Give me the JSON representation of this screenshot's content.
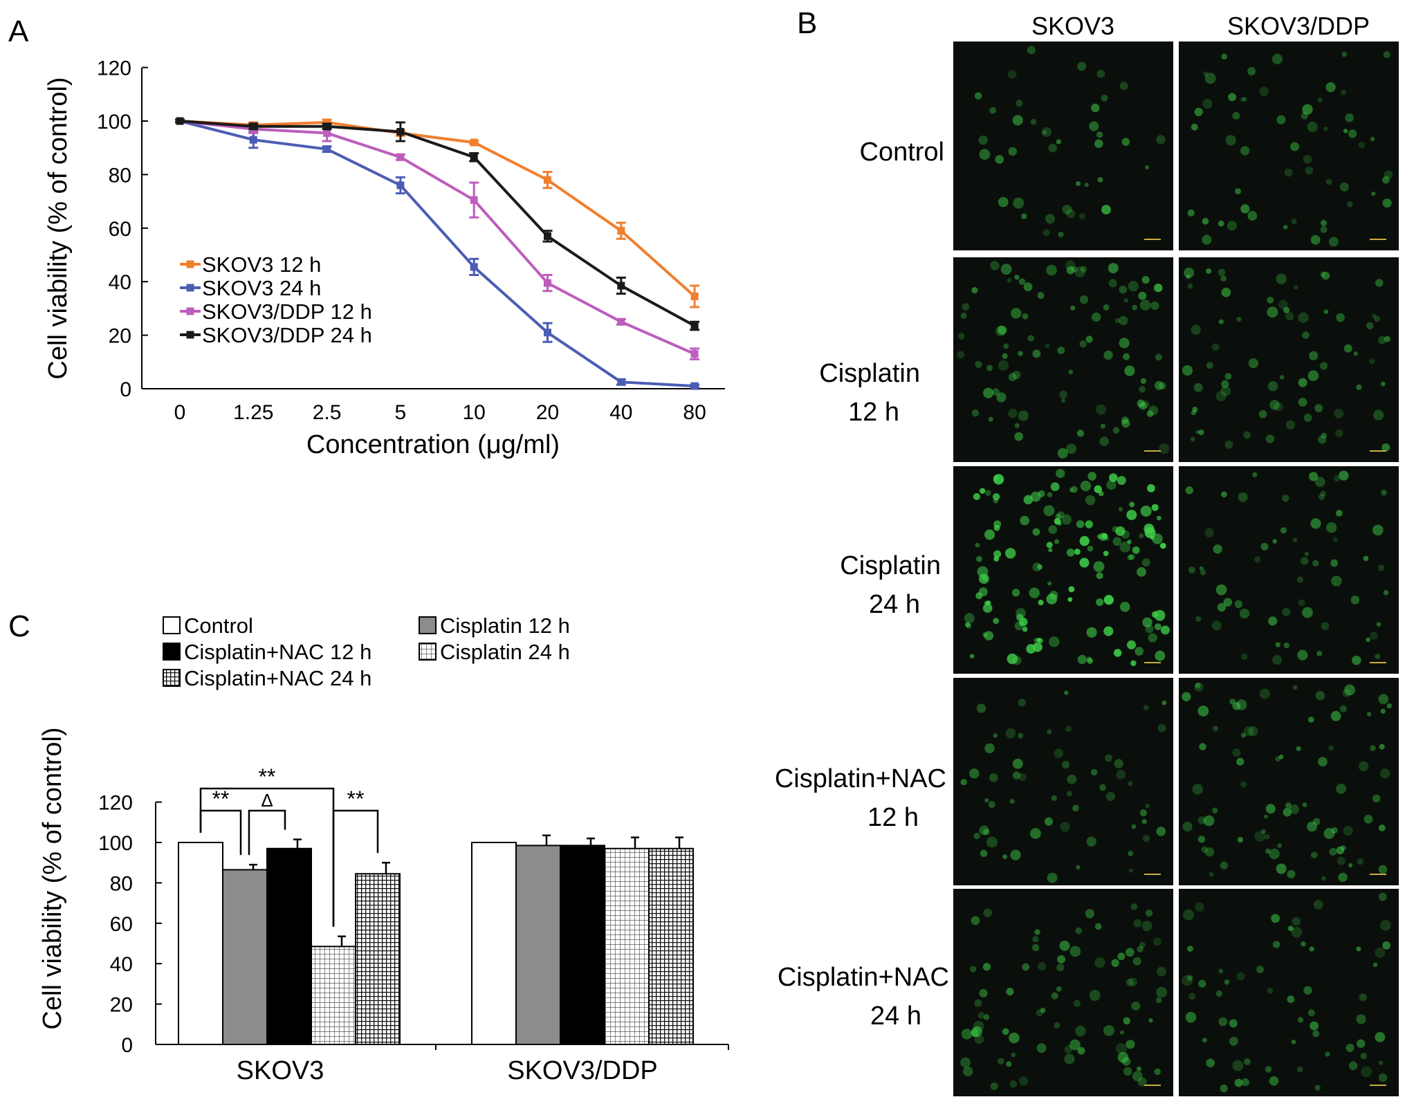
{
  "panel_letters": {
    "a": "A",
    "b": "B",
    "c": "C"
  },
  "colors": {
    "skov3_12h": "#f07f2e",
    "skov3_24h": "#4b5db3",
    "skov3ddp_12h": "#bd5dbd",
    "skov3ddp_24h": "#1a1a1a",
    "bar_control": "#ffffff",
    "bar_cisplatin_12h": "#8c8c8c",
    "bar_nac_12h": "#000000",
    "micro_bg": "#0b0f0b",
    "cell_green": "#3fd14a"
  },
  "chart_data": [
    {
      "panel": "A",
      "type": "line",
      "xlabel": "Concentration (μg/ml)",
      "ylabel": "Cell viability (% of control)",
      "x_ticks": [
        "0",
        "1.25",
        "2.5",
        "5",
        "10",
        "20",
        "40",
        "80"
      ],
      "y_ticks": [
        "0",
        "20",
        "40",
        "60",
        "80",
        "100",
        "120"
      ],
      "ylim": [
        0,
        120
      ],
      "legend_position": "left",
      "series": [
        {
          "name": "SKOV3 12 h",
          "color": "#f07f2e",
          "values": [
            100,
            98.5,
            99.5,
            95.5,
            92,
            78,
            59,
            34.5
          ],
          "errors": [
            0.5,
            1,
            1,
            1,
            0.5,
            3,
            3,
            4
          ]
        },
        {
          "name": "SKOV3 24 h",
          "color": "#4b5db3",
          "values": [
            100,
            93,
            89.5,
            76,
            45.5,
            21,
            2.5,
            1
          ],
          "errors": [
            0.5,
            3,
            1,
            3,
            3,
            3.5,
            1,
            0.5
          ]
        },
        {
          "name": "SKOV3/DDP 12 h",
          "color": "#bd5dbd",
          "values": [
            100,
            97,
            95.5,
            86.5,
            70.5,
            39.5,
            25,
            13
          ],
          "errors": [
            0.5,
            1.5,
            3,
            1,
            6.5,
            3,
            1,
            2
          ]
        },
        {
          "name": "SKOV3/DDP 24 h",
          "color": "#1a1a1a",
          "values": [
            100,
            98,
            98,
            96,
            86.5,
            57,
            38.5,
            23.5
          ],
          "errors": [
            0.5,
            1,
            1,
            3.5,
            1.5,
            2,
            3,
            1.5
          ]
        }
      ]
    },
    {
      "panel": "C",
      "type": "bar",
      "ylabel": "Cell viability (% of control)",
      "categories": [
        "SKOV3",
        "SKOV3/DDP"
      ],
      "y_ticks": [
        "0",
        "20",
        "40",
        "60",
        "80",
        "100",
        "120"
      ],
      "ylim": [
        0,
        120
      ],
      "legend_position": "top",
      "series": [
        {
          "name": "Control",
          "pattern": "white",
          "values": [
            100,
            100
          ],
          "errors": [
            0,
            0
          ]
        },
        {
          "name": "Cisplatin 12 h",
          "pattern": "gray",
          "values": [
            86.5,
            98.5
          ],
          "errors": [
            2.5,
            5
          ]
        },
        {
          "name": "Cisplatin+NAC 12 h",
          "pattern": "black",
          "values": [
            97,
            98.5
          ],
          "errors": [
            4.5,
            3.5
          ]
        },
        {
          "name": "Cisplatin 24 h",
          "pattern": "grid",
          "values": [
            48.5,
            97
          ],
          "errors": [
            5,
            5.5
          ]
        },
        {
          "name": "Cisplatin+NAC 24 h",
          "pattern": "dense-grid",
          "values": [
            84.5,
            97
          ],
          "errors": [
            5.5,
            5.5
          ]
        }
      ],
      "significance": [
        {
          "from_bar": 0,
          "to_bar": 1,
          "label": "**"
        },
        {
          "from_bar": 1,
          "to_bar": 2,
          "label": "Δ"
        },
        {
          "from_bar": 0,
          "to_bar": 3,
          "label": "**"
        },
        {
          "from_bar": 3,
          "to_bar": 4,
          "label": "**"
        }
      ]
    }
  ],
  "panel_b": {
    "columns": [
      "SKOV3",
      "SKOV3/DDP"
    ],
    "rows": [
      {
        "line1": "Control",
        "line2": ""
      },
      {
        "line1": "Cisplatin",
        "line2": "12 h"
      },
      {
        "line1": "Cisplatin",
        "line2": "24 h"
      },
      {
        "line1": "Cisplatin+NAC",
        "line2": "12 h"
      },
      {
        "line1": "Cisplatin+NAC",
        "line2": "24 h"
      }
    ],
    "cell_density": [
      [
        40,
        55
      ],
      [
        90,
        70
      ],
      [
        140,
        60
      ],
      [
        55,
        80
      ],
      [
        80,
        60
      ]
    ]
  }
}
